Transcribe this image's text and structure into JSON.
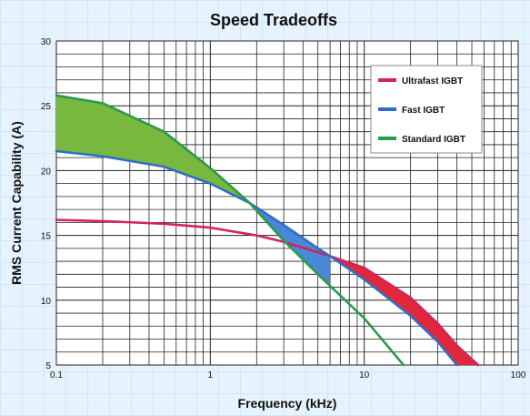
{
  "chart_data": {
    "type": "line",
    "title": "Speed Tradeoffs",
    "xlabel": "Frequency (kHz)",
    "ylabel": "RMS Current Capability (A)",
    "xscale": "log",
    "xlim": [
      0.1,
      100
    ],
    "ylim": [
      5,
      30
    ],
    "x_tick_labels": [
      "0.1",
      "1",
      "10",
      "100"
    ],
    "y_tick_labels": [
      "5",
      "10",
      "15",
      "20",
      "25",
      "30"
    ],
    "grid": true,
    "legend_position": "top-right",
    "series": [
      {
        "name": "Ultrafast IGBT",
        "color": "#d2245b",
        "points": [
          [
            0.1,
            16.2
          ],
          [
            0.2,
            16.1
          ],
          [
            0.5,
            15.9
          ],
          [
            1,
            15.6
          ],
          [
            2,
            15.0
          ],
          [
            3,
            14.5
          ],
          [
            5,
            13.7
          ],
          [
            6,
            13.4
          ],
          [
            10,
            12.5
          ],
          [
            20,
            10.2
          ],
          [
            30,
            8.2
          ],
          [
            40,
            6.5
          ],
          [
            55,
            5.0
          ]
        ]
      },
      {
        "name": "Fast IGBT",
        "color": "#2e6ec8",
        "points": [
          [
            0.1,
            21.5
          ],
          [
            0.2,
            21.1
          ],
          [
            0.5,
            20.3
          ],
          [
            1,
            19.0
          ],
          [
            1.8,
            17.5
          ],
          [
            3,
            15.8
          ],
          [
            5,
            14.0
          ],
          [
            6,
            13.4
          ],
          [
            10,
            11.6
          ],
          [
            20,
            8.8
          ],
          [
            30,
            6.8
          ],
          [
            40,
            5.0
          ]
        ]
      },
      {
        "name": "Standard IGBT",
        "color": "#2a9a4a",
        "points": [
          [
            0.1,
            25.8
          ],
          [
            0.2,
            25.2
          ],
          [
            0.5,
            23.0
          ],
          [
            1,
            20.2
          ],
          [
            1.8,
            17.5
          ],
          [
            3,
            14.6
          ],
          [
            5,
            12.0
          ],
          [
            10,
            8.6
          ],
          [
            18,
            5.0
          ]
        ]
      }
    ],
    "fills": [
      {
        "between": [
          "Standard IGBT",
          "Fast IGBT"
        ],
        "x_range": [
          0.1,
          1.8
        ],
        "color": "#78b83f"
      },
      {
        "between": [
          "Fast IGBT",
          "Standard IGBT"
        ],
        "x_range": [
          1.8,
          6
        ],
        "color": "#4a87d6"
      },
      {
        "between": [
          "Ultrafast IGBT",
          "Fast IGBT"
        ],
        "x_range": [
          6,
          55
        ],
        "color": "#e1283a"
      }
    ]
  }
}
